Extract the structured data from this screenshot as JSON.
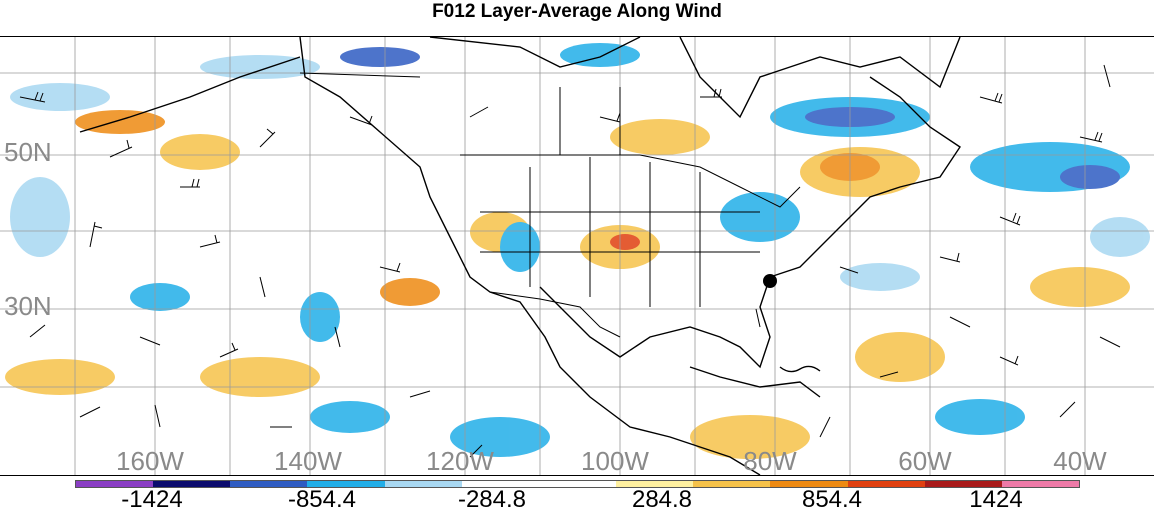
{
  "title": "F012 Layer-Average Along Wind",
  "map": {
    "lat_labels": [
      "50N",
      "30N"
    ],
    "lon_labels": [
      "160W",
      "140W",
      "120W",
      "100W",
      "80W",
      "60W",
      "40W"
    ]
  },
  "colorbar": {
    "colors": [
      "#8a3ec4",
      "#0b0b6e",
      "#2f5cc2",
      "#22aee8",
      "#a8d8f2",
      "#ffffff",
      "#ffffff",
      "#fff0a0",
      "#f6c24a",
      "#ee8a12",
      "#e04010",
      "#a81a1a",
      "#ee7aa8"
    ],
    "labels": [
      "-1424",
      "-854.4",
      "-284.8",
      "284.8",
      "854.4",
      "1424"
    ]
  }
}
